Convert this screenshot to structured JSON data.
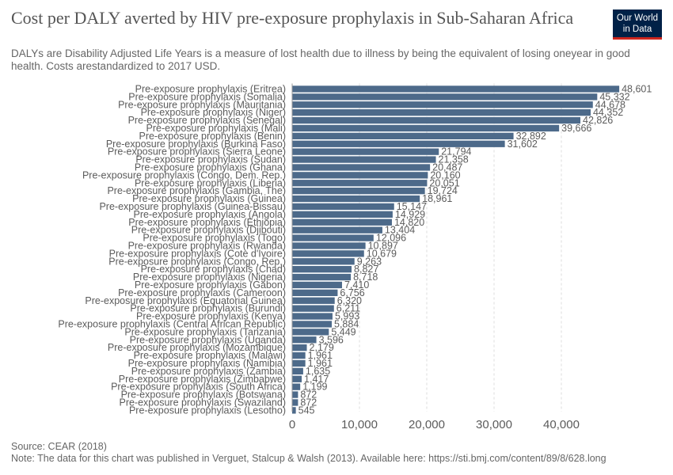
{
  "header": {
    "title": "Cost per DALY averted by HIV pre-exposure prophylaxis in Sub-Saharan Africa",
    "subtitle": "DALYs are Disability Adjusted Life Years is a measure of lost health due to illness by being the equivalent of losing oneyear in good health. Costs arestandardized to 2017 USD.",
    "logo_line1": "Our World",
    "logo_line2": "in Data"
  },
  "footer": {
    "source": "Source: CEAR (2018)",
    "note": "Note: The data for this chart was published in Verguet, Stalcup & Walsh (2013). Available here: https://sti.bmj.com/content/89/8/628.long"
  },
  "colors": {
    "bar": "#4d6a8a",
    "grid": "#dddddd",
    "text": "#5b5b5b",
    "logo_bg": "#002147",
    "logo_accent": "#ce261e"
  },
  "chart_data": {
    "type": "bar",
    "orientation": "horizontal",
    "categories": [
      "Pre-exposure prophylaxis (Eritrea)",
      "Pre-exposure prophylaxis (Somalia)",
      "Pre-exposure prophylaxis (Mauritania)",
      "Pre-exposure prophylaxis (Niger)",
      "Pre-exposure prophylaxis (Senegal)",
      "Pre-exposure prophylaxis (Mali)",
      "Pre-exposure prophylaxis (Benin)",
      "Pre-exposure prophylaxis (Burkina Faso)",
      "Pre-exposure prophylaxis (Sierra Leone)",
      "Pre-exposure prophylaxis (Sudan)",
      "Pre-exposure prophylaxis (Ghana)",
      "Pre-exposure prophylaxis (Congo, Dem. Rep.)",
      "Pre-exposure prophylaxis (Liberia)",
      "Pre-exposure prophylaxis (Gambia, The)",
      "Pre-exposure prophylaxis (Guinea)",
      "Pre-exposure prophylaxis (Guinea-Bissau)",
      "Pre-exposure prophylaxis (Angola)",
      "Pre-exposure prophylaxis (Ethiopia)",
      "Pre-exposure prophylaxis (Djibouti)",
      "Pre-exposure prophylaxis (Togo)",
      "Pre-exposure prophylaxis (Rwanda)",
      "Pre-exposure prophylaxis (Cote d'Ivoire)",
      "Pre-exposure prophylaxis (Congo, Rep.)",
      "Pre-exposure prophylaxis (Chad)",
      "Pre-exposure prophylaxis (Nigeria)",
      "Pre-exposure prophylaxis (Gabon)",
      "Pre-exposure prophylaxis (Cameroon)",
      "Pre-exposure prophylaxis (Equatorial Guinea)",
      "Pre-exposure prophylaxis (Burundi)",
      "Pre-exposure prophylaxis (Kenya)",
      "Pre-exposure prophylaxis (Central African Republic)",
      "Pre-exposure prophylaxis (Tanzania)",
      "Pre-exposure prophylaxis (Uganda)",
      "Pre-exposure prophylaxis (Mozambique)",
      "Pre-exposure prophylaxis (Malawi)",
      "Pre-exposure prophylaxis (Namibia)",
      "Pre-exposure prophylaxis (Zambia)",
      "Pre-exposure prophylaxis (Zimbabwe)",
      "Pre-exposure prophylaxis (South Africa)",
      "Pre-exposure prophylaxis (Botswana)",
      "Pre-exposure prophylaxis (Swaziland)",
      "Pre-exposure prophylaxis (Lesotho)"
    ],
    "values": [
      48601,
      45332,
      44678,
      44352,
      42826,
      39666,
      32892,
      31602,
      21794,
      21358,
      20487,
      20160,
      20051,
      19724,
      18961,
      15147,
      14929,
      14820,
      13404,
      12096,
      10897,
      10679,
      9263,
      8827,
      8718,
      7410,
      6756,
      6320,
      6211,
      5993,
      5884,
      5449,
      3596,
      2179,
      1961,
      1961,
      1635,
      1417,
      1199,
      872,
      872,
      545
    ],
    "value_labels": [
      "48,601",
      "45,332",
      "44,678",
      "44,352",
      "42,826",
      "39,666",
      "32,892",
      "31,602",
      "21,794",
      "21,358",
      "20,487",
      "20,160",
      "20,051",
      "19,724",
      "18,961",
      "15,147",
      "14,929",
      "14,820",
      "13,404",
      "12,096",
      "10,897",
      "10,679",
      "9,263",
      "8,827",
      "8,718",
      "7,410",
      "6,756",
      "6,320",
      "6,211",
      "5,993",
      "5,884",
      "5,449",
      "3,596",
      "2,179",
      "1,961",
      "1,961",
      "1,635",
      "1,417",
      "1,199",
      "872",
      "872",
      "545"
    ],
    "xlim": [
      0,
      50000
    ],
    "x_ticks": [
      0,
      10000,
      20000,
      30000,
      40000
    ],
    "x_tick_labels": [
      "0",
      "10,000",
      "20,000",
      "30,000",
      "40,000"
    ],
    "grid": true,
    "xlabel": "",
    "ylabel": ""
  }
}
